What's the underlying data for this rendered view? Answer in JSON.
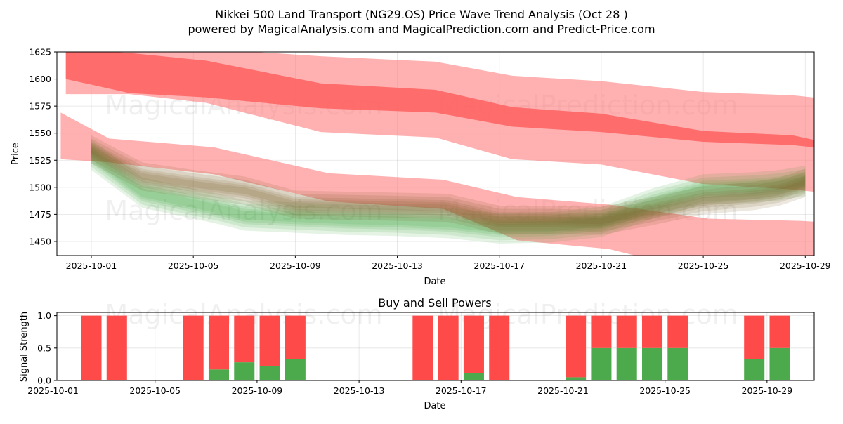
{
  "chart_data": [
    {
      "type": "area",
      "title_line1": "Nikkei 500 Land Transport (NG29.OS) Price Wave Trend Analysis (Oct 28 )",
      "title_line2": "powered by MagicalAnalysis.com and MagicalPrediction.com and Predict-Price.com",
      "xlabel": "Date",
      "ylabel": "Price",
      "xlim": [
        -1.35,
        28.35
      ],
      "ylim": [
        1437,
        1625
      ],
      "y_ticks": [
        1450,
        1475,
        1500,
        1525,
        1550,
        1575,
        1600,
        1625
      ],
      "x_ticks": [
        {
          "pos": 0,
          "label": "2025-10-01"
        },
        {
          "pos": 4,
          "label": "2025-10-05"
        },
        {
          "pos": 8,
          "label": "2025-10-09"
        },
        {
          "pos": 12,
          "label": "2025-10-13"
        },
        {
          "pos": 16,
          "label": "2025-10-17"
        },
        {
          "pos": 20,
          "label": "2025-10-21"
        },
        {
          "pos": 24,
          "label": "2025-10-25"
        },
        {
          "pos": 28,
          "label": "2025-10-29"
        }
      ],
      "watermarks": [
        "MagicalAnalysis.com",
        "MagicalPrediction.com"
      ],
      "series": [
        {
          "name": "Upper wave band (outer)",
          "color": "#ff8080",
          "x": [
            -1,
            1.5,
            4.5,
            9,
            13.5,
            16.5,
            20,
            24,
            27.5,
            28.7
          ],
          "upper": [
            1645,
            1632,
            1628,
            1621,
            1616,
            1603,
            1598,
            1588,
            1585,
            1582
          ],
          "lower": [
            1586,
            1586,
            1578,
            1551,
            1546,
            1526,
            1521,
            1503,
            1498,
            1495
          ]
        },
        {
          "name": "Upper wave band (core)",
          "color": "#ff6060",
          "x": [
            -1,
            1.5,
            4.5,
            9,
            13.5,
            16.5,
            20,
            24,
            27.5,
            28.7
          ],
          "upper": [
            1628,
            1624,
            1617,
            1596,
            1590,
            1574,
            1568,
            1552,
            1548,
            1542
          ],
          "lower": [
            1600,
            1587,
            1583,
            1573,
            1569,
            1556,
            1551,
            1542,
            1539,
            1536
          ]
        },
        {
          "name": "Lower wave band",
          "color": "#ff8080",
          "x": [
            -1.2,
            0.7,
            4.8,
            9.3,
            13.8,
            16.7,
            20.3,
            24.2,
            27.8,
            28.6
          ],
          "upper": [
            1569,
            1545,
            1537,
            1513,
            1507,
            1491,
            1484,
            1471,
            1469,
            1468
          ],
          "lower": [
            1526,
            1523,
            1512,
            1487,
            1480,
            1451,
            1443,
            1420,
            1414,
            1413
          ]
        },
        {
          "name": "Price path (green)",
          "color": "#2ca02c",
          "x": [
            0,
            2,
            4,
            5,
            6,
            8,
            10,
            12,
            14,
            16,
            18,
            20,
            22,
            24,
            26,
            27,
            28
          ],
          "values": [
            1530,
            1495,
            1485,
            1480,
            1474,
            1472,
            1470,
            1469,
            1467,
            1462,
            1463,
            1468,
            1485,
            1498,
            1500,
            1502,
            1506
          ]
        },
        {
          "name": "Price path (brown)",
          "color": "#7a5a26",
          "x": [
            0,
            2,
            4,
            6,
            8,
            10,
            12,
            14,
            16,
            18,
            20,
            22,
            24,
            26,
            27,
            28
          ],
          "values": [
            1535,
            1510,
            1503,
            1497,
            1484,
            1483,
            1482,
            1481,
            1470,
            1470,
            1469,
            1478,
            1488,
            1492,
            1496,
            1504
          ]
        }
      ]
    },
    {
      "type": "bar",
      "title": "Buy and Sell Powers",
      "xlabel": "Date",
      "ylabel": "Signal Strength",
      "xlim": [
        -1.35,
        28.35
      ],
      "ylim": [
        0,
        1.05
      ],
      "y_ticks": [
        0.0,
        0.5,
        1.0
      ],
      "y_tick_labels": [
        "0.0",
        "0.5",
        "1.0"
      ],
      "x_ticks": [
        {
          "pos": -1.5,
          "label": "2025-10-01"
        },
        {
          "pos": 2.5,
          "label": "2025-10-05"
        },
        {
          "pos": 6.5,
          "label": "2025-10-09"
        },
        {
          "pos": 10.5,
          "label": "2025-10-13"
        },
        {
          "pos": 14.5,
          "label": "2025-10-17"
        },
        {
          "pos": 18.5,
          "label": "2025-10-21"
        },
        {
          "pos": 22.5,
          "label": "2025-10-25"
        },
        {
          "pos": 26.5,
          "label": "2025-10-29"
        }
      ],
      "watermarks": [
        "MagicalAnalysis.com",
        "MagicalPrediction.com"
      ],
      "buy_color": "#4caa4c",
      "sell_color": "#ff4a4a",
      "categories": [
        0,
        1,
        4,
        5,
        6,
        7,
        8,
        13,
        14,
        15,
        16,
        19,
        20,
        21,
        22,
        23,
        26,
        27
      ],
      "series": [
        {
          "name": "Buy",
          "values": [
            0,
            0,
            0,
            0.17,
            0.28,
            0.22,
            0.33,
            0,
            0,
            0.11,
            0,
            0.05,
            0.5,
            0.5,
            0.5,
            0.5,
            0.33,
            0.5
          ]
        },
        {
          "name": "Sell",
          "values": [
            1,
            1,
            1,
            0.83,
            0.72,
            0.78,
            0.67,
            1,
            1,
            0.89,
            1,
            0.95,
            0.5,
            0.5,
            0.5,
            0.5,
            0.67,
            0.5
          ]
        }
      ]
    }
  ]
}
